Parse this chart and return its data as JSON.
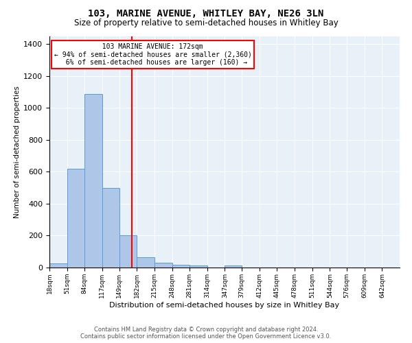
{
  "title": "103, MARINE AVENUE, WHITLEY BAY, NE26 3LN",
  "subtitle": "Size of property relative to semi-detached houses in Whitley Bay",
  "xlabel": "Distribution of semi-detached houses by size in Whitley Bay",
  "ylabel": "Number of semi-detached properties",
  "property_label": "103 MARINE AVENUE: 172sqm",
  "pct_smaller": 94,
  "n_smaller": 2360,
  "pct_larger": 6,
  "n_larger": 160,
  "bin_edges": [
    18,
    51,
    84,
    117,
    149,
    182,
    215,
    248,
    281,
    314,
    347,
    379,
    412,
    445,
    478,
    511,
    544,
    576,
    609,
    642,
    675
  ],
  "bar_heights": [
    25,
    620,
    1085,
    500,
    200,
    65,
    30,
    18,
    13,
    0,
    13,
    0,
    0,
    0,
    0,
    0,
    0,
    0,
    0,
    0
  ],
  "bar_color": "#aec6e8",
  "bar_edge_color": "#5b9bd5",
  "vline_x": 172,
  "vline_color": "red",
  "ylim": [
    0,
    1450
  ],
  "yticks": [
    0,
    200,
    400,
    600,
    800,
    1000,
    1200,
    1400
  ],
  "background_color": "#e8f0f8",
  "title_fontsize": 10,
  "subtitle_fontsize": 8.5,
  "footer_line1": "Contains HM Land Registry data © Crown copyright and database right 2024.",
  "footer_line2": "Contains public sector information licensed under the Open Government Licence v3.0."
}
